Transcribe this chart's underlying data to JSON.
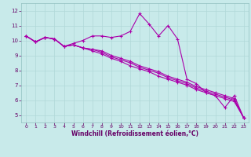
{
  "xlabel": "Windchill (Refroidissement éolien,°C)",
  "background_color": "#c8eaea",
  "grid_color": "#b0d8d8",
  "line_color": "#aa00aa",
  "x_hours": [
    0,
    1,
    2,
    3,
    4,
    5,
    6,
    7,
    8,
    9,
    10,
    11,
    12,
    13,
    14,
    15,
    16,
    17,
    18,
    19,
    20,
    21,
    22,
    23
  ],
  "series1": [
    10.3,
    9.9,
    10.2,
    10.1,
    9.6,
    9.8,
    10.0,
    10.3,
    10.3,
    10.2,
    10.3,
    10.6,
    11.8,
    11.1,
    10.3,
    11.0,
    10.1,
    7.4,
    7.1,
    6.5,
    6.3,
    5.5,
    6.3,
    4.8
  ],
  "series2": [
    10.3,
    9.9,
    10.2,
    10.1,
    9.6,
    9.7,
    9.5,
    9.3,
    9.1,
    8.8,
    8.6,
    8.3,
    8.1,
    7.9,
    7.6,
    7.4,
    7.2,
    7.0,
    6.7,
    6.5,
    6.3,
    6.1,
    5.9,
    4.8
  ],
  "series3": [
    10.3,
    9.9,
    10.2,
    10.1,
    9.6,
    9.7,
    9.5,
    9.4,
    9.2,
    8.9,
    8.7,
    8.5,
    8.2,
    8.0,
    7.8,
    7.5,
    7.3,
    7.1,
    6.8,
    6.6,
    6.4,
    6.2,
    6.0,
    4.8
  ],
  "series4": [
    10.3,
    9.9,
    10.2,
    10.1,
    9.6,
    9.7,
    9.5,
    9.4,
    9.3,
    9.0,
    8.8,
    8.6,
    8.3,
    8.1,
    7.9,
    7.6,
    7.4,
    7.2,
    6.9,
    6.7,
    6.5,
    6.3,
    6.1,
    4.8
  ],
  "ylim": [
    4.5,
    12.5
  ],
  "yticks": [
    5,
    6,
    7,
    8,
    9,
    10,
    11,
    12
  ],
  "xlim": [
    -0.5,
    23.5
  ],
  "xticks": [
    0,
    1,
    2,
    3,
    4,
    5,
    6,
    7,
    8,
    9,
    10,
    11,
    12,
    13,
    14,
    15,
    16,
    17,
    18,
    19,
    20,
    21,
    22,
    23
  ]
}
